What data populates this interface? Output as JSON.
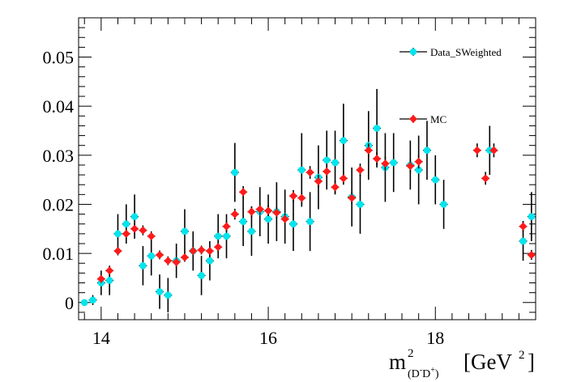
{
  "chart_data": {
    "type": "scatter",
    "xlabel": {
      "main": "m",
      "sup": "2",
      "sub_open": "(D",
      "sub_sup1": "-",
      "sub_mid": "D",
      "sub_sup2": "+",
      "sub_close": ")",
      "unit": "[GeV",
      "unit_sup": "2",
      "unit_close": "]"
    },
    "ylabel": "",
    "xlim": [
      13.73,
      19.2
    ],
    "ylim": [
      -0.0035,
      0.058
    ],
    "x_ticks": [
      {
        "value": 14,
        "label": "14"
      },
      {
        "value": 16,
        "label": "16"
      },
      {
        "value": 18,
        "label": "18"
      }
    ],
    "y_ticks": [
      {
        "value": 0,
        "label": "0"
      },
      {
        "value": 0.01,
        "label": "0.01"
      },
      {
        "value": 0.02,
        "label": "0.02"
      },
      {
        "value": 0.03,
        "label": "0.03"
      },
      {
        "value": 0.04,
        "label": "0.04"
      },
      {
        "value": 0.05,
        "label": "0.05"
      }
    ],
    "grid": false,
    "legend_position": "top-right",
    "series": [
      {
        "name": "Data_SWeighted",
        "color": "#00e5ee",
        "marker": "circle",
        "points": [
          [
            13.8,
            0.0,
            0.0006
          ],
          [
            13.9,
            0.0005,
            0.001
          ],
          [
            14.0,
            0.004,
            0.0025
          ],
          [
            14.1,
            0.0045,
            0.003
          ],
          [
            14.2,
            0.014,
            0.004
          ],
          [
            14.3,
            0.016,
            0.004
          ],
          [
            14.4,
            0.0175,
            0.0045
          ],
          [
            14.5,
            0.0075,
            0.004
          ],
          [
            14.6,
            0.0095,
            0.004
          ],
          [
            14.7,
            0.0022,
            0.0035
          ],
          [
            14.8,
            0.0015,
            0.0035
          ],
          [
            14.9,
            0.0085,
            0.0035
          ],
          [
            15.0,
            0.0145,
            0.0045
          ],
          [
            15.1,
            0.0105,
            0.004
          ],
          [
            15.2,
            0.0055,
            0.004
          ],
          [
            15.3,
            0.0085,
            0.004
          ],
          [
            15.4,
            0.0135,
            0.0045
          ],
          [
            15.5,
            0.0135,
            0.0045
          ],
          [
            15.6,
            0.0265,
            0.006
          ],
          [
            15.7,
            0.0165,
            0.005
          ],
          [
            15.8,
            0.0145,
            0.005
          ],
          [
            15.9,
            0.0185,
            0.005
          ],
          [
            16.0,
            0.017,
            0.005
          ],
          [
            16.1,
            0.0185,
            0.006
          ],
          [
            16.2,
            0.0175,
            0.0055
          ],
          [
            16.3,
            0.016,
            0.0055
          ],
          [
            16.4,
            0.027,
            0.0075
          ],
          [
            16.5,
            0.0165,
            0.006
          ],
          [
            16.6,
            0.0255,
            0.0065
          ],
          [
            16.7,
            0.029,
            0.006
          ],
          [
            16.8,
            0.0285,
            0.0065
          ],
          [
            16.9,
            0.033,
            0.0075
          ],
          [
            17.0,
            0.0215,
            0.006
          ],
          [
            17.1,
            0.02,
            0.006
          ],
          [
            17.2,
            0.032,
            0.007
          ],
          [
            17.3,
            0.0355,
            0.008
          ],
          [
            17.4,
            0.0275,
            0.007
          ],
          [
            17.5,
            0.0285,
            0.006
          ],
          [
            17.7,
            0.028,
            0.005
          ],
          [
            17.8,
            0.027,
            0.007
          ],
          [
            17.9,
            0.031,
            0.006
          ],
          [
            18.0,
            0.025,
            0.005
          ],
          [
            18.1,
            0.02,
            0.005
          ],
          [
            18.65,
            0.031,
            0.005
          ],
          [
            19.05,
            0.0125,
            0.004
          ],
          [
            19.15,
            0.0175,
            0.005
          ]
        ]
      },
      {
        "name": "MC",
        "color": "#ff1a1a",
        "marker": "diamond",
        "points": [
          [
            14.0,
            0.0048,
            0.0008
          ],
          [
            14.1,
            0.0065,
            0.0008
          ],
          [
            14.2,
            0.0105,
            0.0009
          ],
          [
            14.3,
            0.014,
            0.001
          ],
          [
            14.4,
            0.015,
            0.001
          ],
          [
            14.5,
            0.0147,
            0.001
          ],
          [
            14.6,
            0.0135,
            0.001
          ],
          [
            14.7,
            0.0097,
            0.0009
          ],
          [
            14.8,
            0.0085,
            0.0009
          ],
          [
            14.9,
            0.0082,
            0.0009
          ],
          [
            15.0,
            0.0092,
            0.0009
          ],
          [
            15.1,
            0.0105,
            0.0009
          ],
          [
            15.2,
            0.0107,
            0.0009
          ],
          [
            15.3,
            0.0105,
            0.0009
          ],
          [
            15.4,
            0.0113,
            0.001
          ],
          [
            15.5,
            0.0155,
            0.0011
          ],
          [
            15.6,
            0.018,
            0.0011
          ],
          [
            15.7,
            0.0225,
            0.0012
          ],
          [
            15.8,
            0.0185,
            0.0011
          ],
          [
            15.9,
            0.019,
            0.0011
          ],
          [
            16.0,
            0.0187,
            0.0011
          ],
          [
            16.1,
            0.0183,
            0.0011
          ],
          [
            16.2,
            0.017,
            0.0011
          ],
          [
            16.3,
            0.0217,
            0.0012
          ],
          [
            16.4,
            0.0213,
            0.0012
          ],
          [
            16.5,
            0.0265,
            0.0013
          ],
          [
            16.6,
            0.0247,
            0.0013
          ],
          [
            16.7,
            0.0267,
            0.0013
          ],
          [
            16.8,
            0.0235,
            0.0013
          ],
          [
            16.9,
            0.0253,
            0.0013
          ],
          [
            17.0,
            0.0213,
            0.0012
          ],
          [
            17.1,
            0.027,
            0.0013
          ],
          [
            17.2,
            0.031,
            0.0014
          ],
          [
            17.3,
            0.0293,
            0.0014
          ],
          [
            17.4,
            0.0283,
            0.0014
          ],
          [
            17.7,
            0.0278,
            0.0014
          ],
          [
            17.8,
            0.0287,
            0.0014
          ],
          [
            18.5,
            0.031,
            0.0014
          ],
          [
            18.6,
            0.0253,
            0.0013
          ],
          [
            18.7,
            0.031,
            0.0014
          ],
          [
            19.05,
            0.0155,
            0.0011
          ],
          [
            19.15,
            0.0097,
            0.001
          ]
        ]
      }
    ]
  }
}
